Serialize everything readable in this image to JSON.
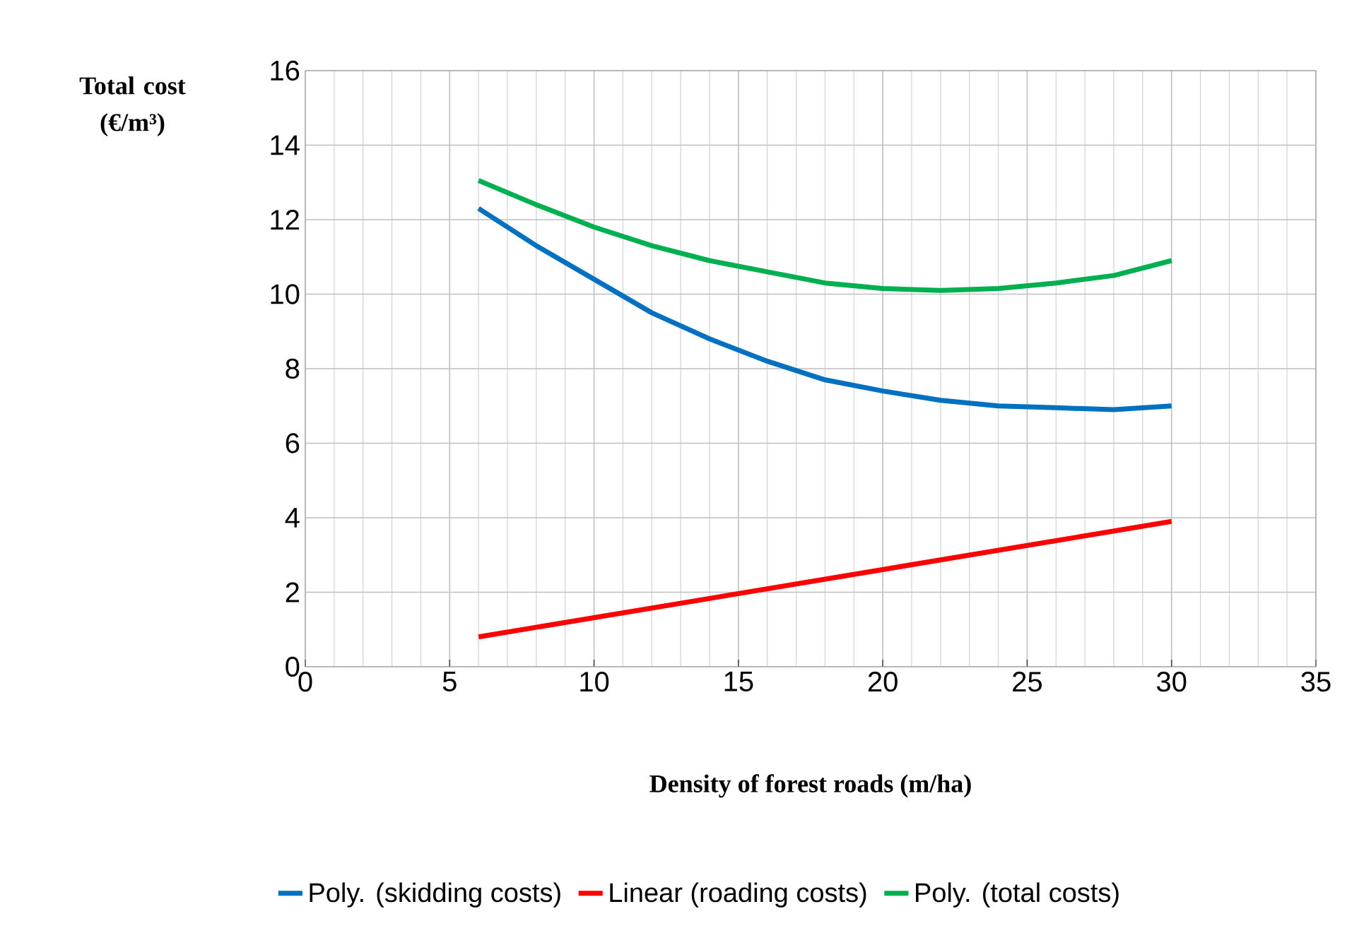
{
  "chart_data": {
    "type": "line",
    "xlabel": "Density of forest roads (m/ha)",
    "ylabel": "Total cost (€/m³)",
    "xlim": [
      0,
      35
    ],
    "xticks": [
      0,
      5,
      10,
      15,
      20,
      25,
      30,
      35
    ],
    "ylim": [
      0,
      16
    ],
    "yticks": [
      0,
      2,
      4,
      6,
      8,
      10,
      12,
      14,
      16
    ],
    "grid": true,
    "legend": "bottom",
    "marker": "none",
    "line_style": "solid",
    "series": [
      {
        "name": "Poly. (skidding costs)",
        "color": "#0070c0",
        "x": [
          6,
          8,
          10,
          12,
          14,
          16,
          18,
          20,
          22,
          24,
          26,
          28,
          30
        ],
        "values": [
          12.3,
          11.3,
          10.4,
          9.5,
          8.8,
          8.2,
          7.7,
          7.4,
          7.15,
          7.0,
          6.95,
          6.9,
          7.0
        ]
      },
      {
        "name": "Linear (roading costs)",
        "color": "#ff0000",
        "x": [
          6,
          30
        ],
        "values": [
          0.8,
          3.9
        ]
      },
      {
        "name": "Poly. (total costs)",
        "color": "#00b050",
        "x": [
          6,
          8,
          10,
          12,
          14,
          16,
          18,
          20,
          22,
          24,
          26,
          28,
          30
        ],
        "values": [
          13.05,
          12.4,
          11.8,
          11.3,
          10.9,
          10.6,
          10.3,
          10.15,
          10.1,
          10.15,
          10.3,
          10.5,
          10.9
        ]
      }
    ]
  }
}
